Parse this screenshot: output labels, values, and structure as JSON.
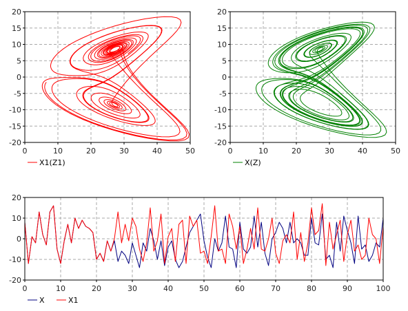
{
  "colors": {
    "red": "#ff0000",
    "green": "#008000",
    "navy": "#000080"
  },
  "chart_data": [
    {
      "type": "line",
      "title": "",
      "xlabel": "",
      "ylabel": "",
      "xlim": [
        0,
        50
      ],
      "ylim": [
        -20,
        20
      ],
      "xticks": [
        0,
        10,
        20,
        30,
        40,
        50
      ],
      "yticks": [
        -20,
        -15,
        -10,
        -5,
        0,
        5,
        10,
        15,
        20
      ],
      "grid": true,
      "legend_position": "bottom-left",
      "series": [
        {
          "name": "X1(Z1)",
          "color": "#ff0000",
          "attractor": {
            "sigma": 10,
            "rho": 28,
            "beta": 2.6667,
            "start": [
              1,
              1,
              1
            ],
            "dt": 0.01,
            "steps": 2200,
            "skip": 200,
            "mode": "z-x"
          }
        }
      ]
    },
    {
      "type": "line",
      "title": "",
      "xlabel": "",
      "ylabel": "",
      "xlim": [
        0,
        50
      ],
      "ylim": [
        -20,
        20
      ],
      "xticks": [
        0,
        10,
        20,
        30,
        40,
        50
      ],
      "yticks": [
        -20,
        -15,
        -10,
        -5,
        0,
        5,
        10,
        15,
        20
      ],
      "grid": true,
      "legend_position": "bottom-left",
      "series": [
        {
          "name": "X(Z)",
          "color": "#008000",
          "attractor": {
            "sigma": 10,
            "rho": 28,
            "beta": 2.6667,
            "start": [
              -1,
              2,
              20
            ],
            "dt": 0.01,
            "steps": 2200,
            "skip": 200,
            "mode": "z-x"
          }
        }
      ]
    },
    {
      "type": "line",
      "title": "",
      "xlabel": "",
      "ylabel": "",
      "xlim": [
        0,
        100
      ],
      "ylim": [
        -20,
        20
      ],
      "xticks": [
        0,
        10,
        20,
        30,
        40,
        50,
        60,
        70,
        80,
        90,
        100
      ],
      "yticks": [
        -20,
        -10,
        0,
        10,
        20
      ],
      "grid": true,
      "legend_position": "bottom-left",
      "x": [
        0,
        1,
        2,
        3,
        4,
        5,
        6,
        7,
        8,
        9,
        10,
        11,
        12,
        13,
        14,
        15,
        16,
        17,
        18,
        19,
        20,
        21,
        22,
        23,
        24,
        25,
        26,
        27,
        28,
        29,
        30,
        31,
        32,
        33,
        34,
        35,
        36,
        37,
        38,
        39,
        40,
        41,
        42,
        43,
        44,
        45,
        46,
        47,
        48,
        49,
        50,
        51,
        52,
        53,
        54,
        55,
        56,
        57,
        58,
        59,
        60,
        61,
        62,
        63,
        64,
        65,
        66,
        67,
        68,
        69,
        70,
        71,
        72,
        73,
        74,
        75,
        76,
        77,
        78,
        79,
        80,
        81,
        82,
        83,
        84,
        85,
        86,
        87,
        88,
        89,
        90,
        91,
        92,
        93,
        94,
        95,
        96,
        97,
        98,
        99,
        100
      ],
      "series": [
        {
          "name": "X",
          "color": "#000080",
          "values": [
            8,
            -12,
            1,
            -2,
            13,
            2,
            -3,
            13,
            16,
            -5,
            -12,
            -1,
            7,
            -2,
            10,
            5,
            9,
            6,
            5,
            3,
            -10,
            -7,
            -11,
            -1,
            -6,
            -1,
            -11,
            -6,
            -8,
            -12,
            -2,
            -8,
            -14,
            -2,
            -6,
            5,
            -1,
            -10,
            -1,
            -13,
            -4,
            -1,
            -10,
            -14,
            -11,
            -4,
            3,
            6,
            9,
            12,
            -1,
            -9,
            -14,
            0,
            -6,
            -2,
            11,
            -4,
            -5,
            -14,
            8,
            -5,
            -7,
            -4,
            11,
            -4,
            8,
            -7,
            -13,
            0,
            3,
            8,
            5,
            -2,
            8,
            -2,
            0,
            -2,
            -8,
            -8,
            10,
            -2,
            -3,
            12,
            -10,
            -8,
            -14,
            8,
            -6,
            11,
            4,
            -2,
            -12,
            11,
            -5,
            -3,
            -11,
            -8,
            -2,
            -4,
            10
          ]
        },
        {
          "name": "X1",
          "color": "#ff0000",
          "values": [
            8,
            -12,
            1,
            -2,
            13,
            2,
            -3,
            13,
            16,
            -5,
            -12,
            -1,
            7,
            -2,
            10,
            5,
            9,
            6,
            5,
            3,
            -10,
            -7,
            -11,
            -1,
            -6,
            0,
            13,
            -2,
            7,
            -1,
            10,
            6,
            -5,
            -11,
            -2,
            15,
            -6,
            -1,
            12,
            -12,
            1,
            5,
            -11,
            7,
            9,
            -12,
            11,
            6,
            9,
            -7,
            -6,
            -12,
            1,
            16,
            -6,
            -5,
            -12,
            12,
            6,
            -5,
            6,
            -12,
            -5,
            5,
            -5,
            15,
            -5,
            -6,
            0,
            10,
            -7,
            -12,
            -1,
            2,
            -2,
            13,
            -10,
            3,
            -11,
            -2,
            15,
            2,
            4,
            17,
            -13,
            8,
            -5,
            2,
            9,
            -11,
            2,
            9,
            -6,
            -3,
            -10,
            -8,
            10,
            2,
            0,
            -12,
            6
          ]
        }
      ]
    }
  ]
}
